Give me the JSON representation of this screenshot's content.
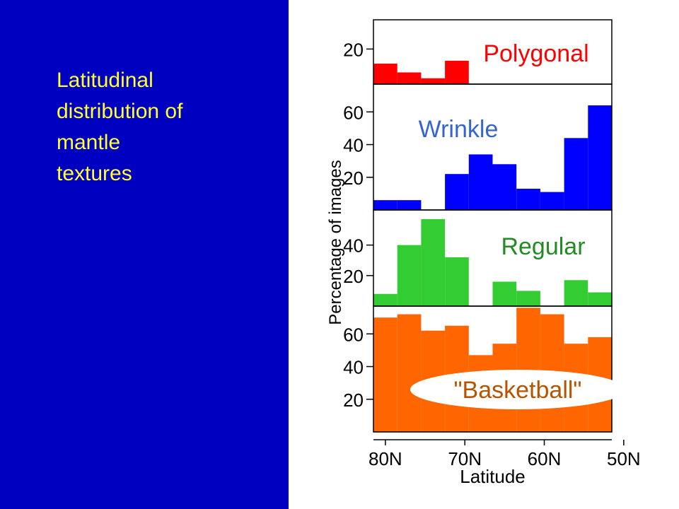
{
  "slide": {
    "title_lines": [
      "Latitudinal",
      "distribution  of",
      "mantle",
      "textures"
    ],
    "left_panel_color": "#0000c0",
    "title_color": "#ffff33"
  },
  "chart_data": {
    "type": "bar",
    "xlabel": "Latitude",
    "ylabel": "Percentage of images",
    "xlim": [
      81.5,
      51.5
    ],
    "x_ticks": [
      80,
      70,
      60,
      50
    ],
    "x_tick_labels": [
      "80N",
      "70N",
      "60N",
      "50N"
    ],
    "bin_edges": [
      81.5,
      78.5,
      75.5,
      72.5,
      69.5,
      66.5,
      63.5,
      60.5,
      57.5,
      54.5,
      51.5
    ],
    "panels": [
      {
        "name": "Polygonal",
        "color": "#ff0000",
        "label_color": "#ff0000",
        "ylim": [
          8,
          30
        ],
        "y_ticks": [
          20
        ],
        "values": [
          15,
          12,
          10,
          16,
          null,
          null,
          null,
          null,
          null,
          null
        ]
      },
      {
        "name": "Wrinkle",
        "color": "#0000ff",
        "label_color": "#3366cc",
        "ylim": [
          0,
          77
        ],
        "y_ticks": [
          20,
          40,
          60
        ],
        "values": [
          6,
          6,
          0,
          22,
          34,
          28,
          13,
          11,
          44,
          64
        ]
      },
      {
        "name": "Regular",
        "color": "#33cc33",
        "label_color": "#228b22",
        "ylim": [
          0,
          63
        ],
        "y_ticks": [
          20,
          40
        ],
        "values": [
          8,
          40,
          57,
          32,
          0,
          16,
          10,
          0,
          17,
          9
        ]
      },
      {
        "name": "\"Basketball\"",
        "color": "#ff6600",
        "label_color": "#b85400",
        "ylim": [
          0,
          77
        ],
        "y_ticks": [
          20,
          40,
          60
        ],
        "values": [
          70,
          72,
          62,
          65,
          47,
          54,
          76,
          72,
          54,
          58
        ]
      }
    ]
  }
}
